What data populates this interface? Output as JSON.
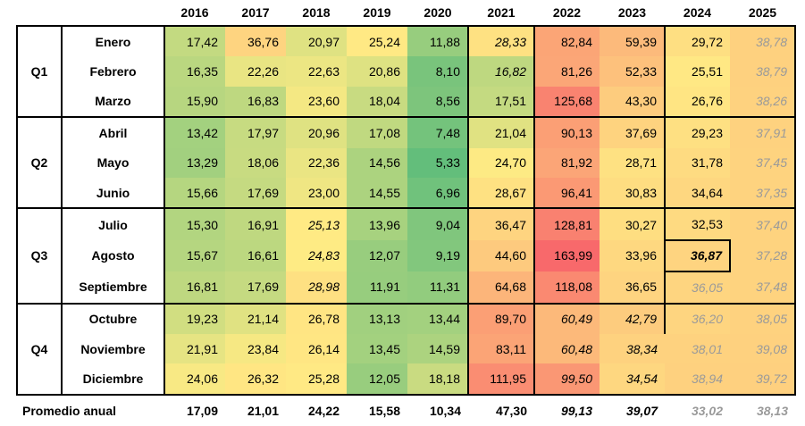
{
  "chart_data": {
    "type": "heatmap",
    "title": "",
    "years": [
      "2016",
      "2017",
      "2018",
      "2019",
      "2020",
      "2021",
      "2022",
      "2023",
      "2024",
      "2025"
    ],
    "quarters": [
      {
        "label": "Q1",
        "months": [
          {
            "name": "Enero",
            "values": [
              "17,42",
              "36,76",
              "20,97",
              "25,24",
              "11,88",
              "28,33",
              "82,84",
              "59,39",
              "29,72",
              "38,78"
            ]
          },
          {
            "name": "Febrero",
            "values": [
              "16,35",
              "22,26",
              "22,63",
              "20,86",
              "8,10",
              "16,82",
              "81,26",
              "52,33",
              "25,51",
              "38,79"
            ]
          },
          {
            "name": "Marzo",
            "values": [
              "15,90",
              "16,83",
              "23,60",
              "18,04",
              "8,56",
              "17,51",
              "125,68",
              "43,30",
              "26,76",
              "38,26"
            ]
          }
        ]
      },
      {
        "label": "Q2",
        "months": [
          {
            "name": "Abril",
            "values": [
              "13,42",
              "17,97",
              "20,96",
              "17,08",
              "7,48",
              "21,04",
              "90,13",
              "37,69",
              "29,23",
              "37,91"
            ]
          },
          {
            "name": "Mayo",
            "values": [
              "13,29",
              "18,06",
              "22,36",
              "14,56",
              "5,33",
              "24,70",
              "81,92",
              "28,71",
              "31,78",
              "37,45"
            ]
          },
          {
            "name": "Junio",
            "values": [
              "15,66",
              "17,69",
              "23,00",
              "14,55",
              "6,96",
              "28,67",
              "96,41",
              "30,83",
              "34,64",
              "37,35"
            ]
          }
        ]
      },
      {
        "label": "Q3",
        "months": [
          {
            "name": "Julio",
            "values": [
              "15,30",
              "16,91",
              "25,13",
              "13,96",
              "9,04",
              "36,47",
              "128,81",
              "30,27",
              "32,53",
              "37,40"
            ]
          },
          {
            "name": "Agosto",
            "values": [
              "15,67",
              "16,61",
              "24,83",
              "12,07",
              "9,19",
              "44,60",
              "163,99",
              "33,96",
              "36,87",
              "37,28"
            ]
          },
          {
            "name": "Septiembre",
            "values": [
              "16,81",
              "17,69",
              "28,98",
              "11,91",
              "11,31",
              "64,68",
              "118,08",
              "36,65",
              "36,05",
              "37,48"
            ]
          }
        ]
      },
      {
        "label": "Q4",
        "months": [
          {
            "name": "Octubre",
            "values": [
              "19,23",
              "21,14",
              "26,78",
              "13,13",
              "13,44",
              "89,70",
              "60,49",
              "42,79",
              "36,20",
              "38,05"
            ]
          },
          {
            "name": "Noviembre",
            "values": [
              "21,91",
              "23,84",
              "26,14",
              "13,45",
              "14,59",
              "83,11",
              "60,48",
              "38,34",
              "38,01",
              "39,08"
            ]
          },
          {
            "name": "Diciembre",
            "values": [
              "24,06",
              "26,32",
              "25,28",
              "12,05",
              "18,18",
              "111,95",
              "99,50",
              "34,54",
              "38,94",
              "39,72"
            ]
          }
        ]
      }
    ],
    "italic_cells": [
      [
        0,
        5
      ],
      [
        1,
        5
      ],
      [
        6,
        2
      ],
      [
        7,
        2
      ],
      [
        8,
        2
      ],
      [
        9,
        6
      ],
      [
        10,
        6
      ],
      [
        11,
        6
      ],
      [
        9,
        7
      ],
      [
        10,
        7
      ],
      [
        11,
        7
      ]
    ],
    "projected_cells": [
      [
        8,
        8
      ],
      [
        9,
        8
      ],
      [
        10,
        8
      ],
      [
        11,
        8
      ],
      [
        0,
        9
      ],
      [
        1,
        9
      ],
      [
        2,
        9
      ],
      [
        3,
        9
      ],
      [
        4,
        9
      ],
      [
        5,
        9
      ],
      [
        6,
        9
      ],
      [
        7,
        9
      ],
      [
        8,
        9
      ],
      [
        9,
        9
      ],
      [
        10,
        9
      ],
      [
        11,
        9
      ]
    ],
    "highlight_cell": [
      7,
      8
    ],
    "average": {
      "label": "Promedio anual",
      "values": [
        "17,09",
        "21,01",
        "24,22",
        "15,58",
        "10,34",
        "47,30",
        "99,13",
        "39,07",
        "33,02",
        "38,13"
      ],
      "italic_idx": [
        6,
        7
      ],
      "projected_idx": [
        8,
        9
      ]
    },
    "color_scale": {
      "low": "#63BE7B",
      "mid": "#FFEB84",
      "high": "#F8696B",
      "min": 5.33,
      "mid_value": 25,
      "max": 163.99
    }
  }
}
